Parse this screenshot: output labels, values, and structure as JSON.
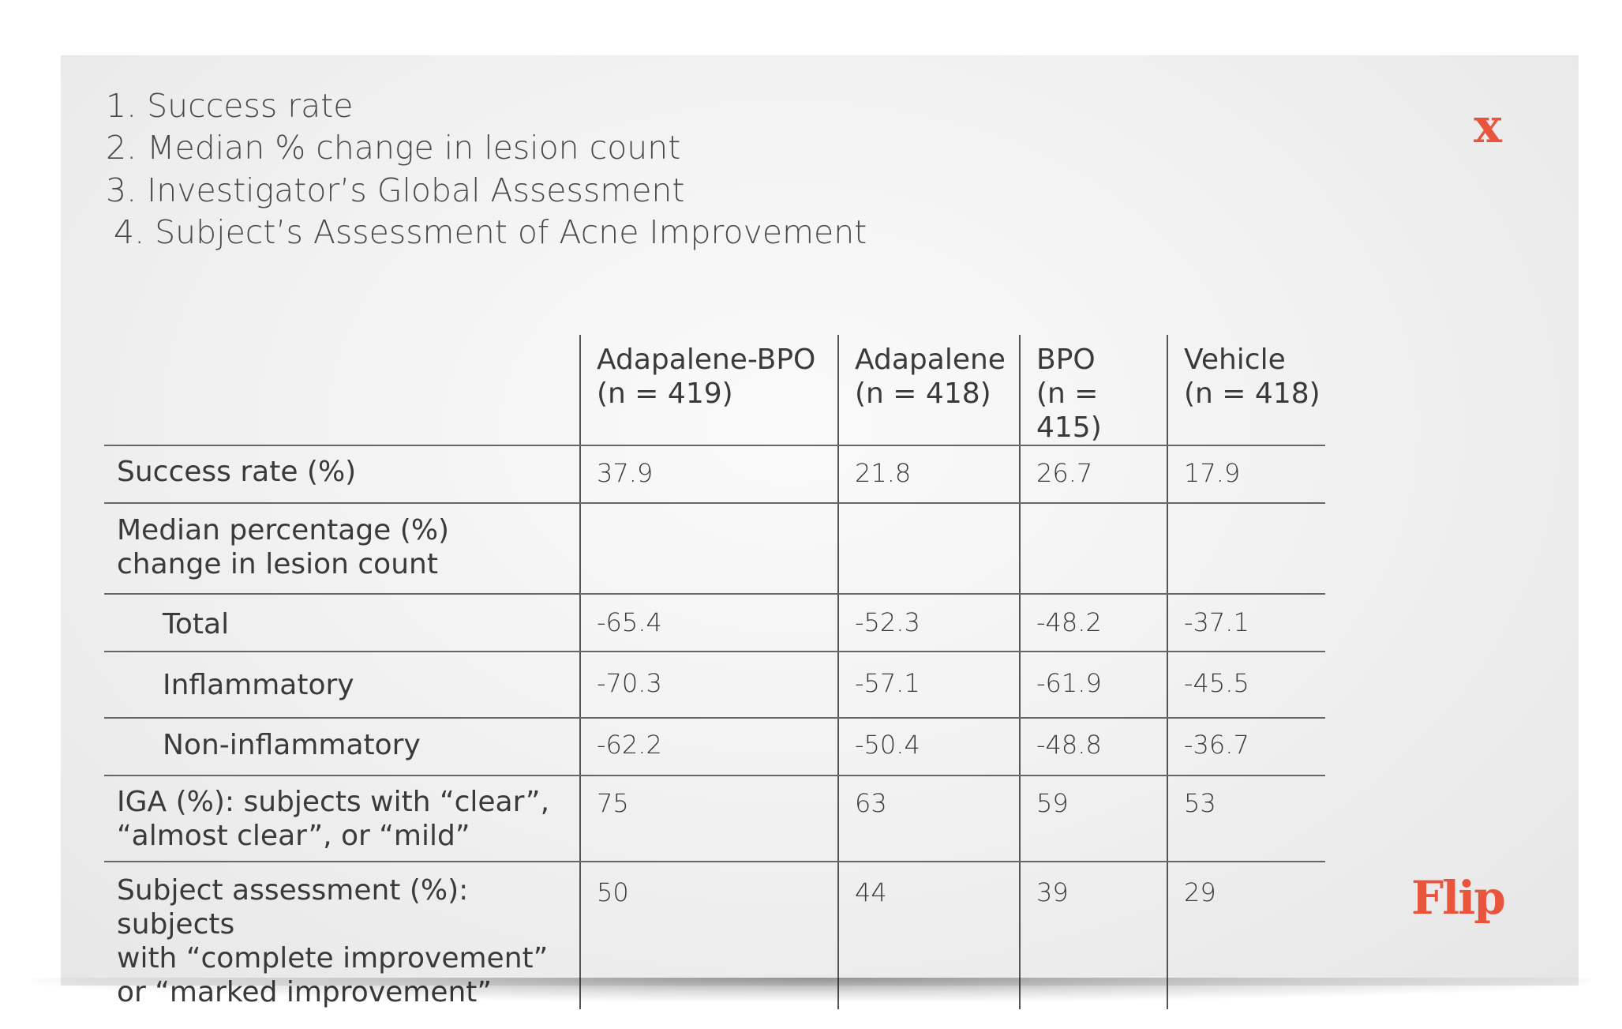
{
  "close_label": "x",
  "flip_label": "Flip",
  "criteria": [
    "1. Success rate",
    "2. Median % change in lesion count",
    "3. Investigator’s Global Assessment",
    "4. Subject’s Assessment of Acne Improvement"
  ],
  "table": {
    "columns": [
      {
        "name": "Adapalene-BPO",
        "n": "(n = 419)"
      },
      {
        "name": "Adapalene",
        "n": "(n = 418)"
      },
      {
        "name": "BPO",
        "n": "(n = 415)"
      },
      {
        "name": "Vehicle",
        "n": "(n = 418)"
      }
    ],
    "rows": [
      {
        "label": "Success rate (%)",
        "values": [
          "37.9",
          "21.8",
          "26.7",
          "17.9"
        ]
      },
      {
        "label_line1": "Median percentage (%)",
        "label_line2": "change in lesion count",
        "values": [
          "",
          "",
          "",
          ""
        ]
      },
      {
        "label": "Total",
        "values": [
          "-65.4",
          "-52.3",
          "-48.2",
          "-37.1"
        ]
      },
      {
        "label": "Inflammatory",
        "values": [
          "-70.3",
          "-57.1",
          "-61.9",
          "-45.5"
        ]
      },
      {
        "label": "Non-inflammatory",
        "values": [
          "-62.2",
          "-50.4",
          "-48.8",
          "-36.7"
        ]
      },
      {
        "label_line1": "IGA (%): subjects with “clear”,",
        "label_line2": "“almost clear”, or “mild”",
        "values": [
          "75",
          "63",
          "59",
          "53"
        ]
      },
      {
        "label_line1": "Subject assessment (%): subjects",
        "label_line2": "with “complete improvement”",
        "label_line3": "or “marked improvement”",
        "values": [
          "50",
          "44",
          "39",
          "29"
        ]
      }
    ]
  }
}
